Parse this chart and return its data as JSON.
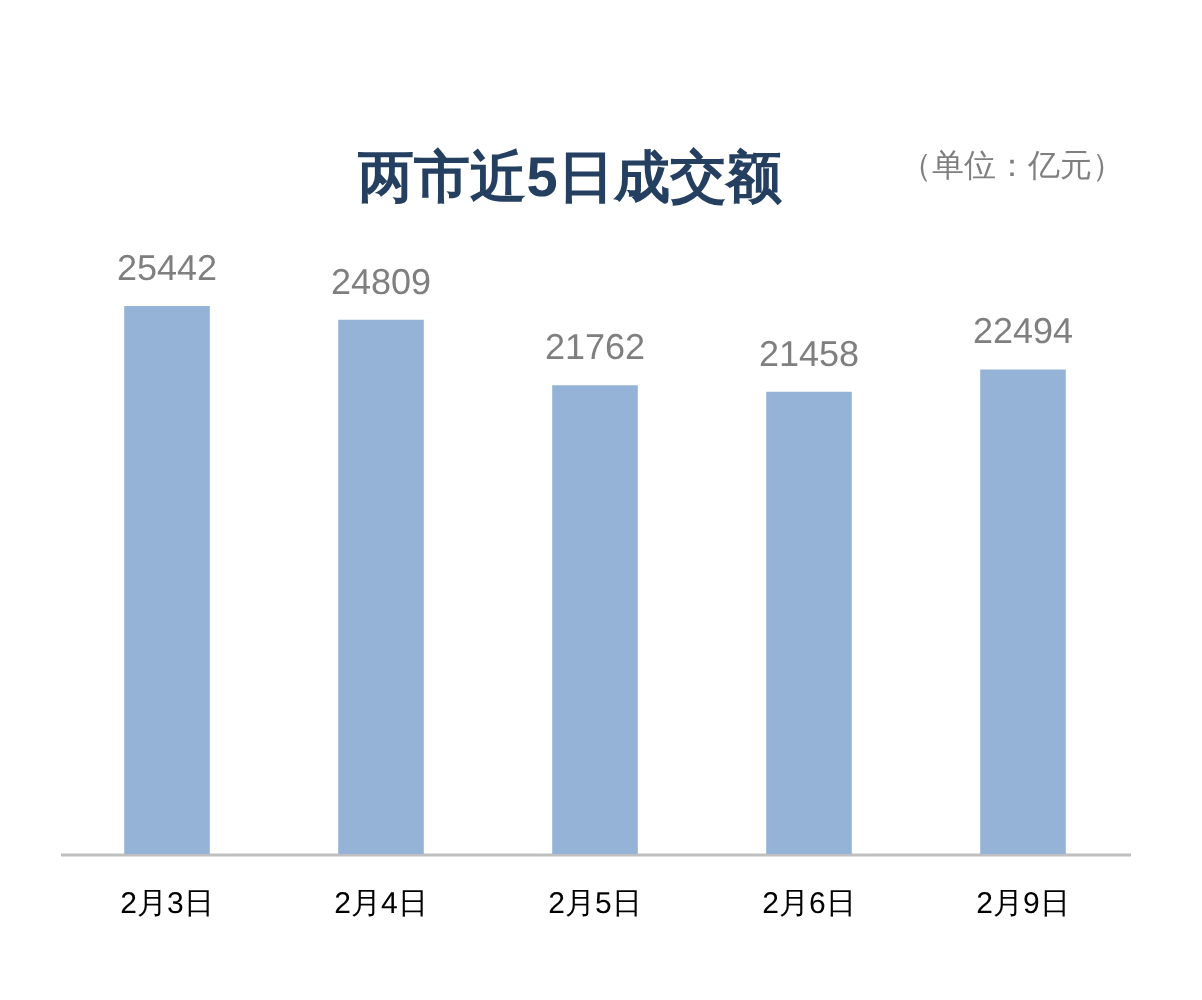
{
  "chart_data": {
    "type": "bar",
    "title": "两市近5日成交额",
    "subtitle": "（单位：亿元）",
    "categories": [
      "2月3日",
      "2月4日",
      "2月5日",
      "2月6日",
      "2月9日"
    ],
    "values": [
      25442,
      24809,
      21762,
      21458,
      22494
    ],
    "color": "#95b3d7",
    "data_labels": true,
    "tick_labels": "x"
  }
}
